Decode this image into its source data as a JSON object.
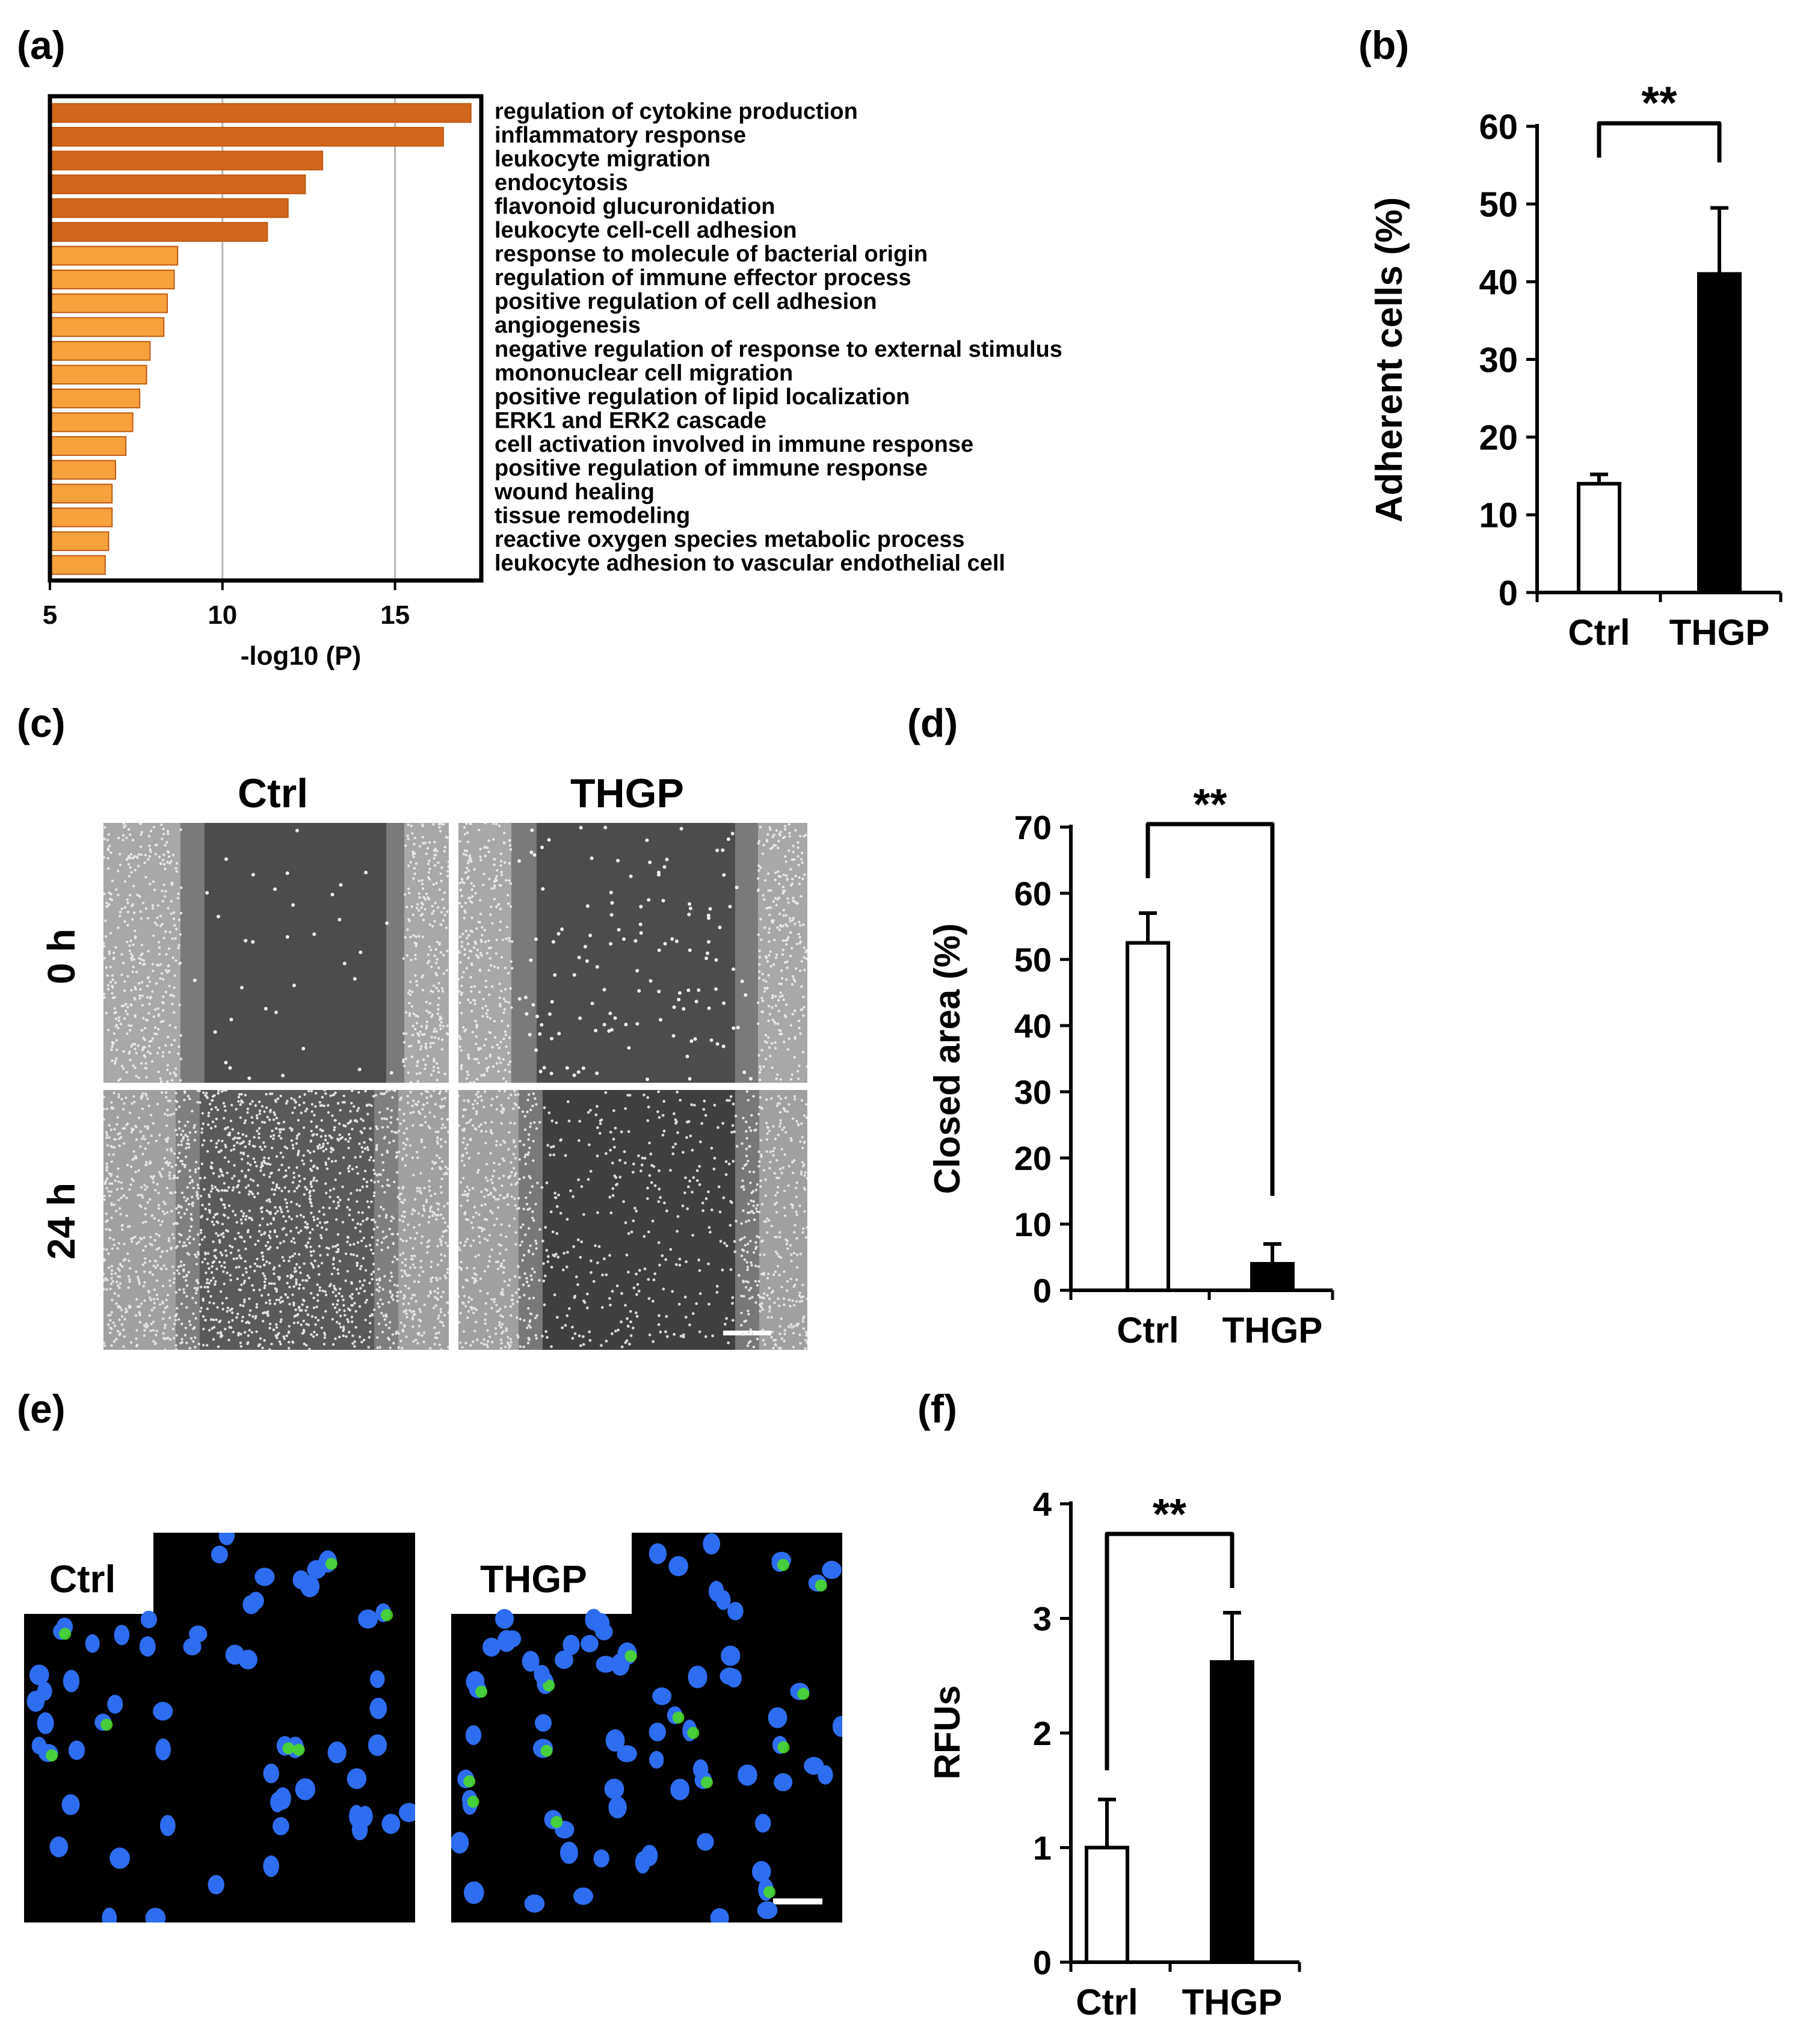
{
  "panels": {
    "a": "(a)",
    "b": "(b)",
    "c": "(c)",
    "d": "(d)",
    "e": "(e)",
    "f": "(f)"
  },
  "colors": {
    "dark_orange": "#d2661a",
    "light_orange": "#f6a13c",
    "bar_outline": "#c05a12",
    "black": "#000000",
    "gray_grid": "#b8b8b8",
    "nucleus_blue": "#2f6df0",
    "stain_green": "#4be01e",
    "micro_gray": "#5a5a5a"
  },
  "chart_data": [
    {
      "panel": "a",
      "type": "bar",
      "orientation": "horizontal",
      "xlabel": "-log10 (P)",
      "xticks": [
        "5",
        "10",
        "15"
      ],
      "xlim": [
        5,
        17.5
      ],
      "grid": "vertical",
      "categories": [
        "regulation of cytokine production",
        "inflammatory response",
        "leukocyte migration",
        "endocytosis",
        "flavonoid glucuronidation",
        "leukocyte cell-cell adhesion",
        "response to molecule of bacterial origin",
        "regulation of immune effector process",
        "positive regulation of cell adhesion",
        "angiogenesis",
        "negative regulation of response to external stimulus",
        "mononuclear cell migration",
        "positive regulation of lipid localization",
        "ERK1 and ERK2 cascade",
        "cell activation involved in immune response",
        "positive regulation of immune response",
        "wound healing",
        "tissue remodeling",
        "reactive oxygen species metabolic process",
        "leukocyte adhesion to vascular endothelial cell"
      ],
      "values": [
        17.2,
        16.4,
        12.9,
        12.4,
        11.9,
        11.3,
        8.7,
        8.6,
        8.4,
        8.3,
        7.9,
        7.8,
        7.6,
        7.4,
        7.2,
        6.9,
        6.8,
        6.8,
        6.7,
        6.6
      ],
      "dark_count": 6
    },
    {
      "panel": "b",
      "type": "bar",
      "categories": [
        "Ctrl",
        "THGP"
      ],
      "values": [
        14,
        41
      ],
      "errors": [
        1.2,
        8.5
      ],
      "fills": [
        "white",
        "black"
      ],
      "ylabel": "Adherent cells (%)",
      "ylim": [
        0,
        60
      ],
      "yticks": [
        "0",
        "10",
        "20",
        "30",
        "40",
        "50",
        "60"
      ],
      "significance": "**"
    },
    {
      "panel": "d",
      "type": "bar",
      "categories": [
        "Ctrl",
        "THGP"
      ],
      "values": [
        52.5,
        4
      ],
      "errors": [
        4.5,
        3
      ],
      "fills": [
        "white",
        "black"
      ],
      "ylabel": "Closed area (%)",
      "ylim": [
        0,
        70
      ],
      "yticks": [
        "0",
        "10",
        "20",
        "30",
        "40",
        "50",
        "60",
        "70"
      ],
      "significance": "**"
    },
    {
      "panel": "f",
      "type": "bar",
      "categories": [
        "Ctrl",
        "THGP"
      ],
      "values": [
        1,
        2.62
      ],
      "errors": [
        0.42,
        0.43
      ],
      "fills": [
        "white",
        "black"
      ],
      "ylabel": "RFUs",
      "ylim": [
        0,
        4
      ],
      "yticks": [
        "0",
        "1",
        "2",
        "3",
        "4"
      ],
      "significance": "**"
    }
  ],
  "panel_c": {
    "columns": [
      "Ctrl",
      "THGP"
    ],
    "rows": [
      "0 h",
      "24 h"
    ]
  },
  "panel_e": {
    "labels": [
      "Ctrl",
      "THGP"
    ]
  }
}
